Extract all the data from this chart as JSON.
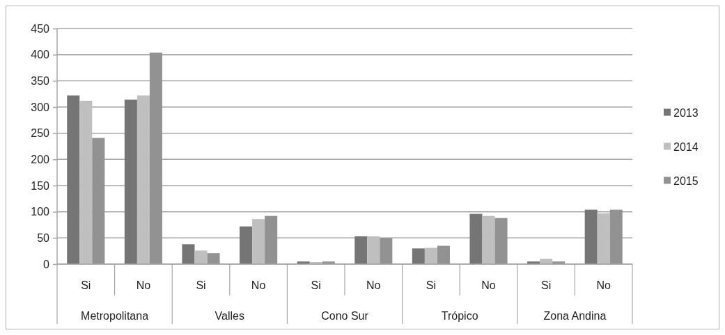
{
  "chart_data": {
    "type": "bar",
    "categories": [
      "Si",
      "No",
      "Si",
      "No",
      "Si",
      "No",
      "Si",
      "No",
      "Si",
      "No"
    ],
    "annotations": [
      "Metropolitana",
      "Valles",
      "Cono Sur",
      "Trópico",
      "Zona Andina"
    ],
    "series": [
      {
        "name": "2013",
        "color": "#757575",
        "values": [
          322,
          314,
          38,
          72,
          5,
          53,
          30,
          96,
          5,
          104
        ]
      },
      {
        "name": "2014",
        "color": "#bfbfbf",
        "values": [
          312,
          322,
          26,
          86,
          4,
          53,
          31,
          92,
          10,
          97
        ]
      },
      {
        "name": "2015",
        "color": "#929292",
        "values": [
          241,
          404,
          21,
          92,
          5,
          50,
          35,
          88,
          5,
          104
        ]
      }
    ],
    "ylim": [
      0,
      450
    ],
    "yticks": [
      0,
      50,
      100,
      150,
      200,
      250,
      300,
      350,
      400,
      450
    ],
    "grid": "y",
    "legend": "right"
  }
}
